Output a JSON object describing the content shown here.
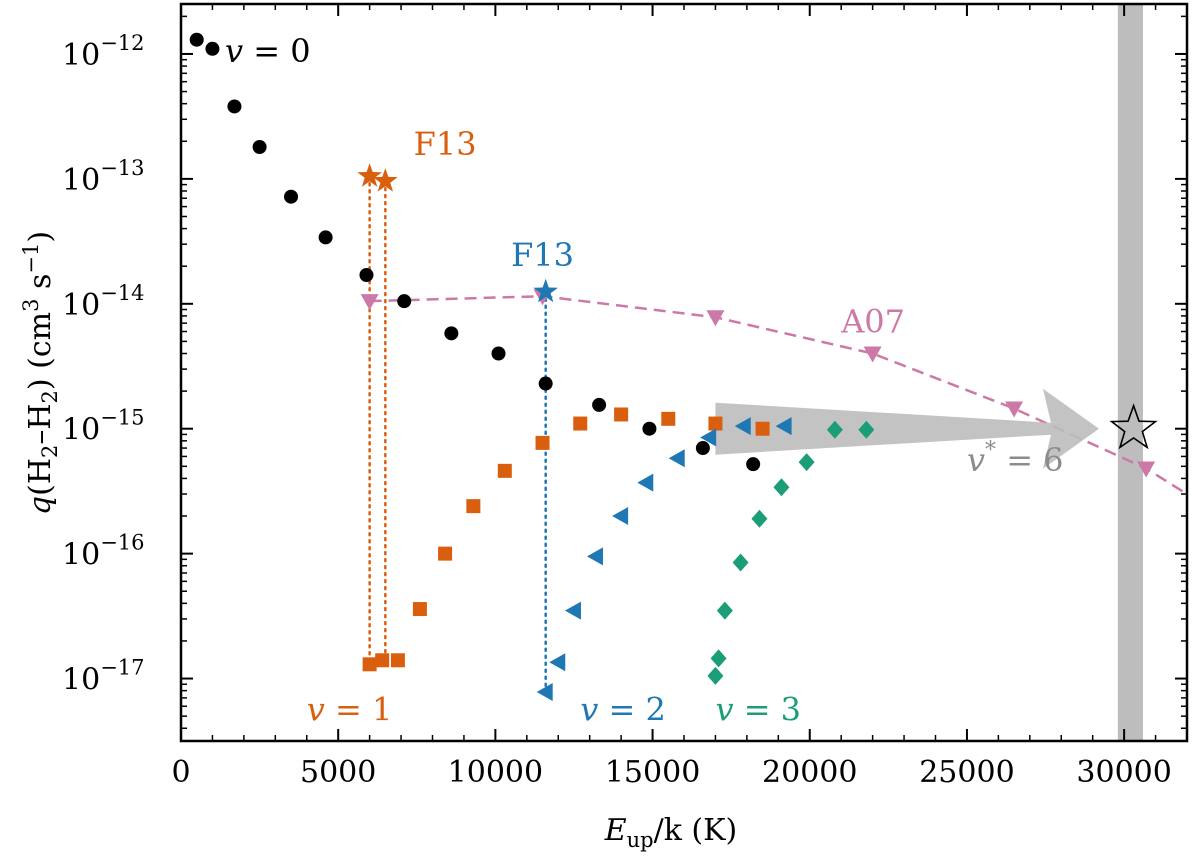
{
  "chart_data": {
    "type": "scatter",
    "title": "",
    "xlabel": {
      "sym": "E",
      "sub": "up",
      "rest": "/k (K)"
    },
    "ylabel": {
      "sym": "q",
      "open": "(H",
      "sub1": "2",
      "mid": "–H",
      "sub2": "2",
      "units": ") (cm",
      "sup1": "3",
      "s": " s",
      "sup2": "−1",
      "close": ")"
    },
    "xlim": [
      0,
      32000
    ],
    "ylim_log10": [
      -17.5,
      -11.6
    ],
    "x_ticks": [
      0,
      5000,
      10000,
      15000,
      20000,
      25000,
      30000
    ],
    "x_tick_labels": [
      "0",
      "5000",
      "10000",
      "15000",
      "20000",
      "25000",
      "30000"
    ],
    "y_ticks_log10": [
      -17,
      -16,
      -15,
      -14,
      -13,
      -12
    ],
    "y_tick_base": "10",
    "y_tick_exps": [
      "−17",
      "−16",
      "−15",
      "−14",
      "−13",
      "−12"
    ],
    "colors": {
      "v0": "#000000",
      "v1": "#d95f0e",
      "v2": "#1f77b4",
      "v3": "#1b9e77",
      "a07": "#cc79a7",
      "band": "#bdbdbd",
      "arrow": "#bdbdbd"
    },
    "series": [
      {
        "name": "v=0",
        "marker": "circle",
        "color": "#000000",
        "points": [
          [
            500,
            1.3e-12
          ],
          [
            1000,
            1.1e-12
          ],
          [
            1700,
            3.8e-13
          ],
          [
            2500,
            1.8e-13
          ],
          [
            3500,
            7.2e-14
          ],
          [
            4600,
            3.4e-14
          ],
          [
            5900,
            1.7e-14
          ],
          [
            7100,
            1.05e-14
          ],
          [
            8600,
            5.8e-15
          ],
          [
            10100,
            4e-15
          ],
          [
            11600,
            2.3e-15
          ],
          [
            13300,
            1.55e-15
          ],
          [
            14900,
            1e-15
          ],
          [
            16600,
            7e-16
          ],
          [
            18200,
            5.2e-16
          ]
        ]
      },
      {
        "name": "v=1",
        "marker": "square",
        "color": "#d95f0e",
        "points": [
          [
            6000,
            1.3e-17
          ],
          [
            6400,
            1.4e-17
          ],
          [
            6900,
            1.4e-17
          ],
          [
            7600,
            3.6e-17
          ],
          [
            8400,
            1e-16
          ],
          [
            9300,
            2.4e-16
          ],
          [
            10300,
            4.6e-16
          ],
          [
            11500,
            7.7e-16
          ],
          [
            12700,
            1.1e-15
          ],
          [
            14000,
            1.3e-15
          ],
          [
            15500,
            1.2e-15
          ],
          [
            17000,
            1.1e-15
          ],
          [
            18500,
            1e-15
          ]
        ]
      },
      {
        "name": "v=2",
        "marker": "triangle-left",
        "color": "#1f77b4",
        "points": [
          [
            11600,
            7.8e-18
          ],
          [
            12000,
            1.35e-17
          ],
          [
            12500,
            3.5e-17
          ],
          [
            13200,
            9.5e-17
          ],
          [
            14000,
            2e-16
          ],
          [
            14800,
            3.7e-16
          ],
          [
            15800,
            5.8e-16
          ],
          [
            16800,
            8.5e-16
          ],
          [
            17900,
            1.05e-15
          ],
          [
            19200,
            1.05e-15
          ]
        ]
      },
      {
        "name": "v=3",
        "marker": "diamond",
        "color": "#1b9e77",
        "points": [
          [
            17000,
            1.05e-17
          ],
          [
            17100,
            1.45e-17
          ],
          [
            17300,
            3.5e-17
          ],
          [
            17800,
            8.5e-17
          ],
          [
            18400,
            1.9e-16
          ],
          [
            19100,
            3.4e-16
          ],
          [
            19900,
            5.4e-16
          ],
          [
            20800,
            9.8e-16
          ],
          [
            21800,
            9.8e-16
          ]
        ]
      },
      {
        "name": "A07",
        "marker": "triangle-down",
        "color": "#cc79a7",
        "line": "dashed",
        "points": [
          [
            6000,
            1.05e-14
          ],
          [
            11500,
            1.15e-14
          ],
          [
            17000,
            7.8e-15
          ],
          [
            22000,
            4e-15
          ],
          [
            26500,
            1.45e-15
          ],
          [
            30700,
            4.8e-16
          ]
        ],
        "extend_to": [
          32000,
          3e-16
        ]
      },
      {
        "name": "F13 v=1",
        "marker": "star",
        "color": "#d95f0e",
        "points": [
          [
            6000,
            1.05e-13
          ],
          [
            6500,
            9.6e-14
          ]
        ],
        "drop_to": 1.3e-17
      },
      {
        "name": "F13 v=2",
        "marker": "star",
        "color": "#1f77b4",
        "points": [
          [
            11600,
            1.25e-14
          ]
        ],
        "drop_to": 7.8e-18
      },
      {
        "name": "v*=6",
        "marker": "star-open",
        "color": "#000000",
        "points": [
          [
            30300,
            1e-15
          ]
        ]
      }
    ],
    "band": {
      "x_range": [
        29800,
        30600
      ]
    },
    "arrow": {
      "from": [
        17000,
        1e-15
      ],
      "to": [
        29200,
        1e-15
      ]
    },
    "annotations": [
      {
        "id": "v0",
        "sym": "v",
        "eq": " = ",
        "num": "0",
        "color": "#000000",
        "at": [
          1400,
          8.6e-13
        ]
      },
      {
        "id": "v1",
        "sym": "v",
        "eq": " = ",
        "num": "1",
        "color": "#d95f0e",
        "at": [
          4000,
          4.6e-18
        ]
      },
      {
        "id": "v2",
        "sym": "v",
        "eq": " = ",
        "num": "2",
        "color": "#1f77b4",
        "at": [
          12700,
          4.6e-18
        ]
      },
      {
        "id": "v3",
        "sym": "v",
        "eq": " = ",
        "num": "3",
        "color": "#1b9e77",
        "at": [
          17000,
          4.6e-18
        ]
      },
      {
        "id": "f13a",
        "text": "F13",
        "color": "#d95f0e",
        "at": [
          7400,
          1.55e-13
        ]
      },
      {
        "id": "f13b",
        "text": "F13",
        "color": "#1f77b4",
        "at": [
          10500,
          2e-14
        ]
      },
      {
        "id": "a07",
        "text": "A07",
        "color": "#cc79a7",
        "at": [
          21000,
          5.9e-15
        ]
      },
      {
        "id": "vstar",
        "sym": "v",
        "sup": "*",
        "eq": " = ",
        "num": "6",
        "color": "#8c8c8c",
        "at": [
          25000,
          4.6e-16
        ]
      }
    ]
  }
}
